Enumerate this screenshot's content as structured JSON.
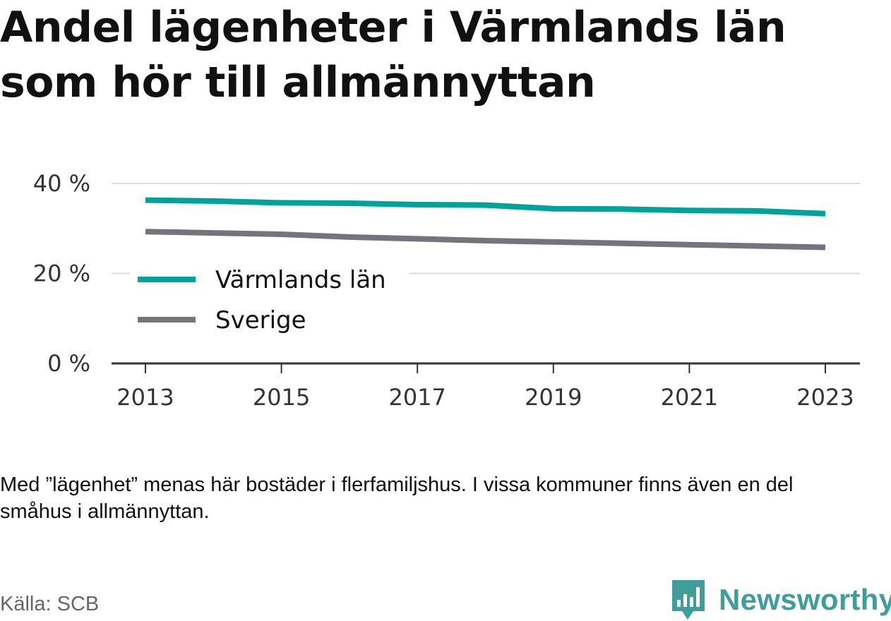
{
  "title": "Andel lägenheter i Värmlands län som hör till allmännyttan",
  "note": "Med ”lägenhet” menas här bostäder i flerfamiljshus. I vissa kommuner finns även en del småhus i allmännyttan.",
  "source": "Källa: SCB",
  "brand": "Newsworthy",
  "colors": {
    "varmland": "#00a39a",
    "sverige": "#74747c",
    "brand": "#3f9e99"
  },
  "chart_data": {
    "type": "line",
    "title": "Andel lägenheter i Värmlands län som hör till allmännyttan",
    "x": [
      2013,
      2014,
      2015,
      2016,
      2017,
      2018,
      2019,
      2020,
      2021,
      2022,
      2023
    ],
    "series": [
      {
        "name": "Värmlands län",
        "color": "#00a39a",
        "values": [
          36.3,
          36.1,
          35.7,
          35.6,
          35.3,
          35.2,
          34.4,
          34.3,
          34.0,
          33.9,
          33.3
        ]
      },
      {
        "name": "Sverige",
        "color": "#74747c",
        "values": [
          29.3,
          29.0,
          28.7,
          28.1,
          27.7,
          27.3,
          27.0,
          26.7,
          26.4,
          26.1,
          25.8
        ]
      }
    ],
    "xticks": [
      "2013",
      "2015",
      "2017",
      "2019",
      "2021",
      "2023"
    ],
    "xtick_values": [
      2013,
      2015,
      2017,
      2019,
      2021,
      2023
    ],
    "yticks": [
      "0 %",
      "20 %",
      "40 %"
    ],
    "ytick_values": [
      0,
      20,
      40
    ],
    "ylim": [
      0,
      40
    ],
    "xlim": [
      2013,
      2023
    ],
    "grid": true,
    "legend_position": "lower-left"
  }
}
